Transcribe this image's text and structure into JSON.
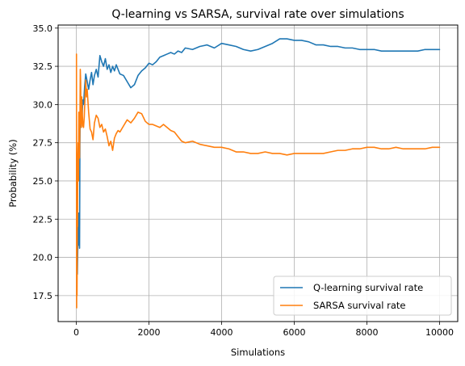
{
  "chart_data": {
    "type": "line",
    "title": "Q-learning vs SARSA, survival rate over simulations",
    "xlabel": "Simulations",
    "ylabel": "Probability (%)",
    "xlim": [
      -500,
      10500
    ],
    "ylim": [
      15.8,
      35.2
    ],
    "xticks": [
      0,
      2000,
      4000,
      6000,
      8000,
      10000
    ],
    "xtick_labels": [
      "0",
      "2000",
      "4000",
      "6000",
      "8000",
      "10000"
    ],
    "yticks": [
      17.5,
      20.0,
      22.5,
      25.0,
      27.5,
      30.0,
      32.5,
      35.0
    ],
    "ytick_labels": [
      "17.5",
      "20.0",
      "22.5",
      "25.0",
      "27.5",
      "30.0",
      "32.5",
      "35.0"
    ],
    "grid": true,
    "legend_position": "lower-right",
    "series": [
      {
        "name": "Q-learning survival rate",
        "color": "#1f77b4",
        "x": [
          10,
          20,
          30,
          40,
          50,
          60,
          70,
          80,
          90,
          100,
          110,
          120,
          140,
          160,
          180,
          200,
          230,
          260,
          300,
          340,
          380,
          420,
          460,
          500,
          550,
          600,
          650,
          700,
          750,
          800,
          850,
          900,
          950,
          1000,
          1050,
          1100,
          1200,
          1300,
          1400,
          1500,
          1600,
          1700,
          1800,
          1900,
          2000,
          2100,
          2200,
          2300,
          2400,
          2500,
          2600,
          2700,
          2800,
          2900,
          3000,
          3200,
          3400,
          3600,
          3800,
          4000,
          4200,
          4400,
          4600,
          4800,
          5000,
          5200,
          5400,
          5600,
          5800,
          6000,
          6200,
          6400,
          6600,
          6800,
          7000,
          7200,
          7400,
          7600,
          7800,
          8000,
          8200,
          8400,
          8600,
          8800,
          9000,
          9200,
          9400,
          9600,
          9800,
          10000
        ],
        "values": [
          26.5,
          19.5,
          18.9,
          20.5,
          22.0,
          20.8,
          22.9,
          21.5,
          20.6,
          27.5,
          30.0,
          29.5,
          28.8,
          29.2,
          30.3,
          30.0,
          31.2,
          32.0,
          31.5,
          31.0,
          31.6,
          32.1,
          31.3,
          31.9,
          32.3,
          31.8,
          33.2,
          32.8,
          32.5,
          33.0,
          32.3,
          32.6,
          32.1,
          32.5,
          32.2,
          32.6,
          32.0,
          31.9,
          31.5,
          31.1,
          31.3,
          31.9,
          32.2,
          32.4,
          32.7,
          32.6,
          32.8,
          33.1,
          33.2,
          33.3,
          33.4,
          33.3,
          33.5,
          33.4,
          33.7,
          33.6,
          33.8,
          33.9,
          33.7,
          34.0,
          33.9,
          33.8,
          33.6,
          33.5,
          33.6,
          33.8,
          34.0,
          34.3,
          34.3,
          34.2,
          34.2,
          34.1,
          33.9,
          33.9,
          33.8,
          33.8,
          33.7,
          33.7,
          33.6,
          33.6,
          33.6,
          33.5,
          33.5,
          33.5,
          33.5,
          33.5,
          33.5,
          33.6,
          33.6,
          33.6
        ]
      },
      {
        "name": "SARSA survival rate",
        "color": "#ff7f0e",
        "x": [
          5,
          10,
          15,
          20,
          25,
          30,
          35,
          40,
          50,
          60,
          70,
          80,
          90,
          100,
          110,
          120,
          130,
          140,
          150,
          160,
          180,
          200,
          220,
          240,
          260,
          280,
          300,
          340,
          380,
          420,
          460,
          500,
          550,
          600,
          650,
          700,
          750,
          800,
          850,
          900,
          950,
          1000,
          1050,
          1100,
          1150,
          1200,
          1300,
          1400,
          1500,
          1600,
          1700,
          1800,
          1900,
          2000,
          2100,
          2200,
          2300,
          2400,
          2500,
          2600,
          2700,
          2800,
          2900,
          3000,
          3200,
          3400,
          3600,
          3800,
          4000,
          4200,
          4400,
          4600,
          4800,
          5000,
          5200,
          5400,
          5600,
          5800,
          6000,
          6200,
          6400,
          6600,
          6800,
          7000,
          7200,
          7400,
          7600,
          7800,
          8000,
          8200,
          8400,
          8600,
          8800,
          9000,
          9200,
          9400,
          9600,
          9800,
          10000
        ],
        "values": [
          33.3,
          16.7,
          25.0,
          17.5,
          20.0,
          24.5,
          22.0,
          26.5,
          27.5,
          25.0,
          29.5,
          27.5,
          26.5,
          29.0,
          32.3,
          31.5,
          29.0,
          28.5,
          30.5,
          29.8,
          28.6,
          28.5,
          29.2,
          30.5,
          31.6,
          30.5,
          31.0,
          29.5,
          28.4,
          28.2,
          27.7,
          28.8,
          29.3,
          29.1,
          28.5,
          28.7,
          28.2,
          28.4,
          27.9,
          27.3,
          27.6,
          27.0,
          27.8,
          28.1,
          28.3,
          28.2,
          28.6,
          29.0,
          28.8,
          29.1,
          29.5,
          29.4,
          28.9,
          28.7,
          28.7,
          28.6,
          28.5,
          28.7,
          28.5,
          28.3,
          28.2,
          27.9,
          27.6,
          27.5,
          27.6,
          27.4,
          27.3,
          27.2,
          27.2,
          27.1,
          26.9,
          26.9,
          26.8,
          26.8,
          26.9,
          26.8,
          26.8,
          26.7,
          26.8,
          26.8,
          26.8,
          26.8,
          26.8,
          26.9,
          27.0,
          27.0,
          27.1,
          27.1,
          27.2,
          27.2,
          27.1,
          27.1,
          27.2,
          27.1,
          27.1,
          27.1,
          27.1,
          27.2,
          27.2
        ]
      }
    ]
  }
}
